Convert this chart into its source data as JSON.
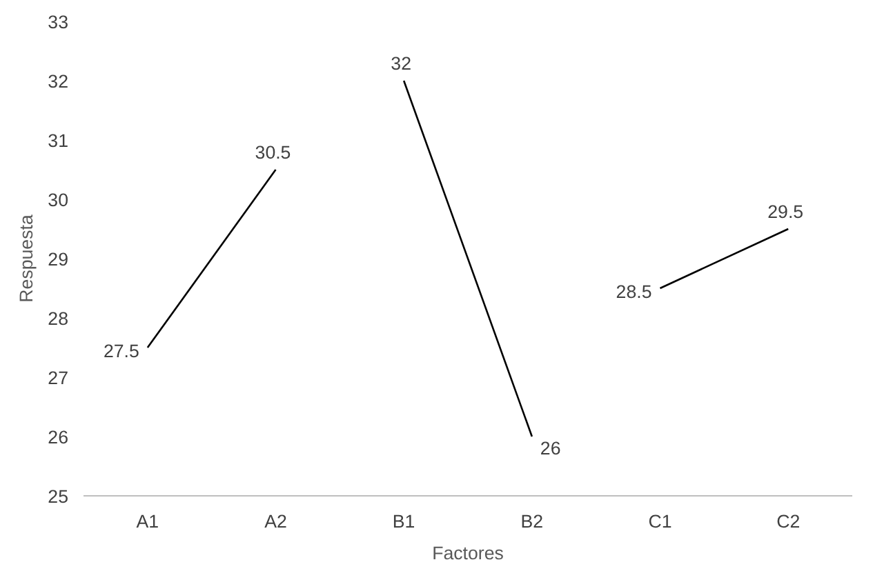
{
  "chart_data": {
    "type": "line",
    "xlabel": "Factores",
    "ylabel": "Respuesta",
    "categories": [
      "A1",
      "A2",
      "B1",
      "B2",
      "C1",
      "C2"
    ],
    "ylim": [
      25,
      33
    ],
    "yticks": [
      25,
      26,
      27,
      28,
      29,
      30,
      31,
      32,
      33
    ],
    "marker": "none",
    "line_style": "solid",
    "data_labels": true,
    "series": [
      {
        "color": "#000000",
        "values": [
          27.5,
          30.5,
          null,
          null,
          null,
          null
        ]
      },
      {
        "color": "#000000",
        "values": [
          null,
          null,
          32,
          26,
          null,
          null
        ]
      },
      {
        "color": "#000000",
        "values": [
          null,
          null,
          null,
          null,
          28.5,
          29.5
        ]
      }
    ]
  }
}
